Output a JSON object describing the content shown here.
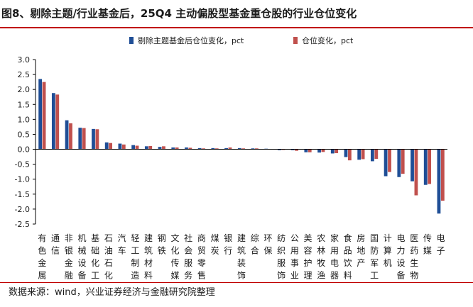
{
  "title": "图8、剔除主题/行业基金后，25Q4 主动偏股型基金重仓股的行业仓位变化",
  "source": "数据来源：wind，兴业证券经济与金融研究院整理",
  "colors": {
    "series1": "#1f4e96",
    "series2": "#c0504d",
    "accent": "#c00000",
    "axis": "#000000"
  },
  "chart_data": {
    "type": "bar",
    "categories": [
      "有色金属",
      "通信",
      "非银金融",
      "机械设备",
      "基础化工",
      "石油石化",
      "汽车",
      "轻工制造",
      "建筑材料",
      "钢铁",
      "文化传媒",
      "社会服务",
      "商贸零售",
      "煤炭",
      "银行",
      "建筑装饰",
      "综合",
      "环保",
      "纺织服饰",
      "公用事业",
      "美容护理",
      "农林牧渔",
      "家用电器",
      "食品饮料",
      "房地产",
      "国防军工",
      "计算机",
      "电力设备",
      "医药生物",
      "传媒",
      "电子"
    ],
    "series": [
      {
        "name": "剔除主题基金后仓位变化，pct",
        "values": [
          2.35,
          1.88,
          0.97,
          0.72,
          0.68,
          0.23,
          0.19,
          0.14,
          0.1,
          0.08,
          0.06,
          0.06,
          0.04,
          0.04,
          0.04,
          0.04,
          0.03,
          0.02,
          -0.03,
          -0.03,
          -0.1,
          -0.11,
          -0.14,
          -0.26,
          -0.35,
          -0.4,
          -0.9,
          -0.93,
          -1.07,
          -1.19,
          -2.15
        ]
      },
      {
        "name": "仓位变化，pct",
        "values": [
          2.25,
          1.83,
          0.87,
          0.71,
          0.67,
          0.21,
          0.16,
          0.12,
          0.11,
          0.1,
          0.06,
          0.05,
          0.03,
          0.03,
          0.06,
          0.03,
          0.03,
          0.01,
          -0.02,
          -0.05,
          -0.1,
          -0.09,
          -0.13,
          -0.37,
          -0.33,
          -0.32,
          -0.76,
          -0.82,
          -1.54,
          -1.16,
          -1.72
        ]
      }
    ],
    "ylim": [
      -2.5,
      3.0
    ],
    "yticks": [
      3.0,
      2.5,
      2.0,
      1.5,
      1.0,
      0.5,
      0.0,
      -0.5,
      -1.0,
      -1.5,
      -2.0,
      -2.5
    ],
    "legend_position": "top-right",
    "grid": false
  }
}
